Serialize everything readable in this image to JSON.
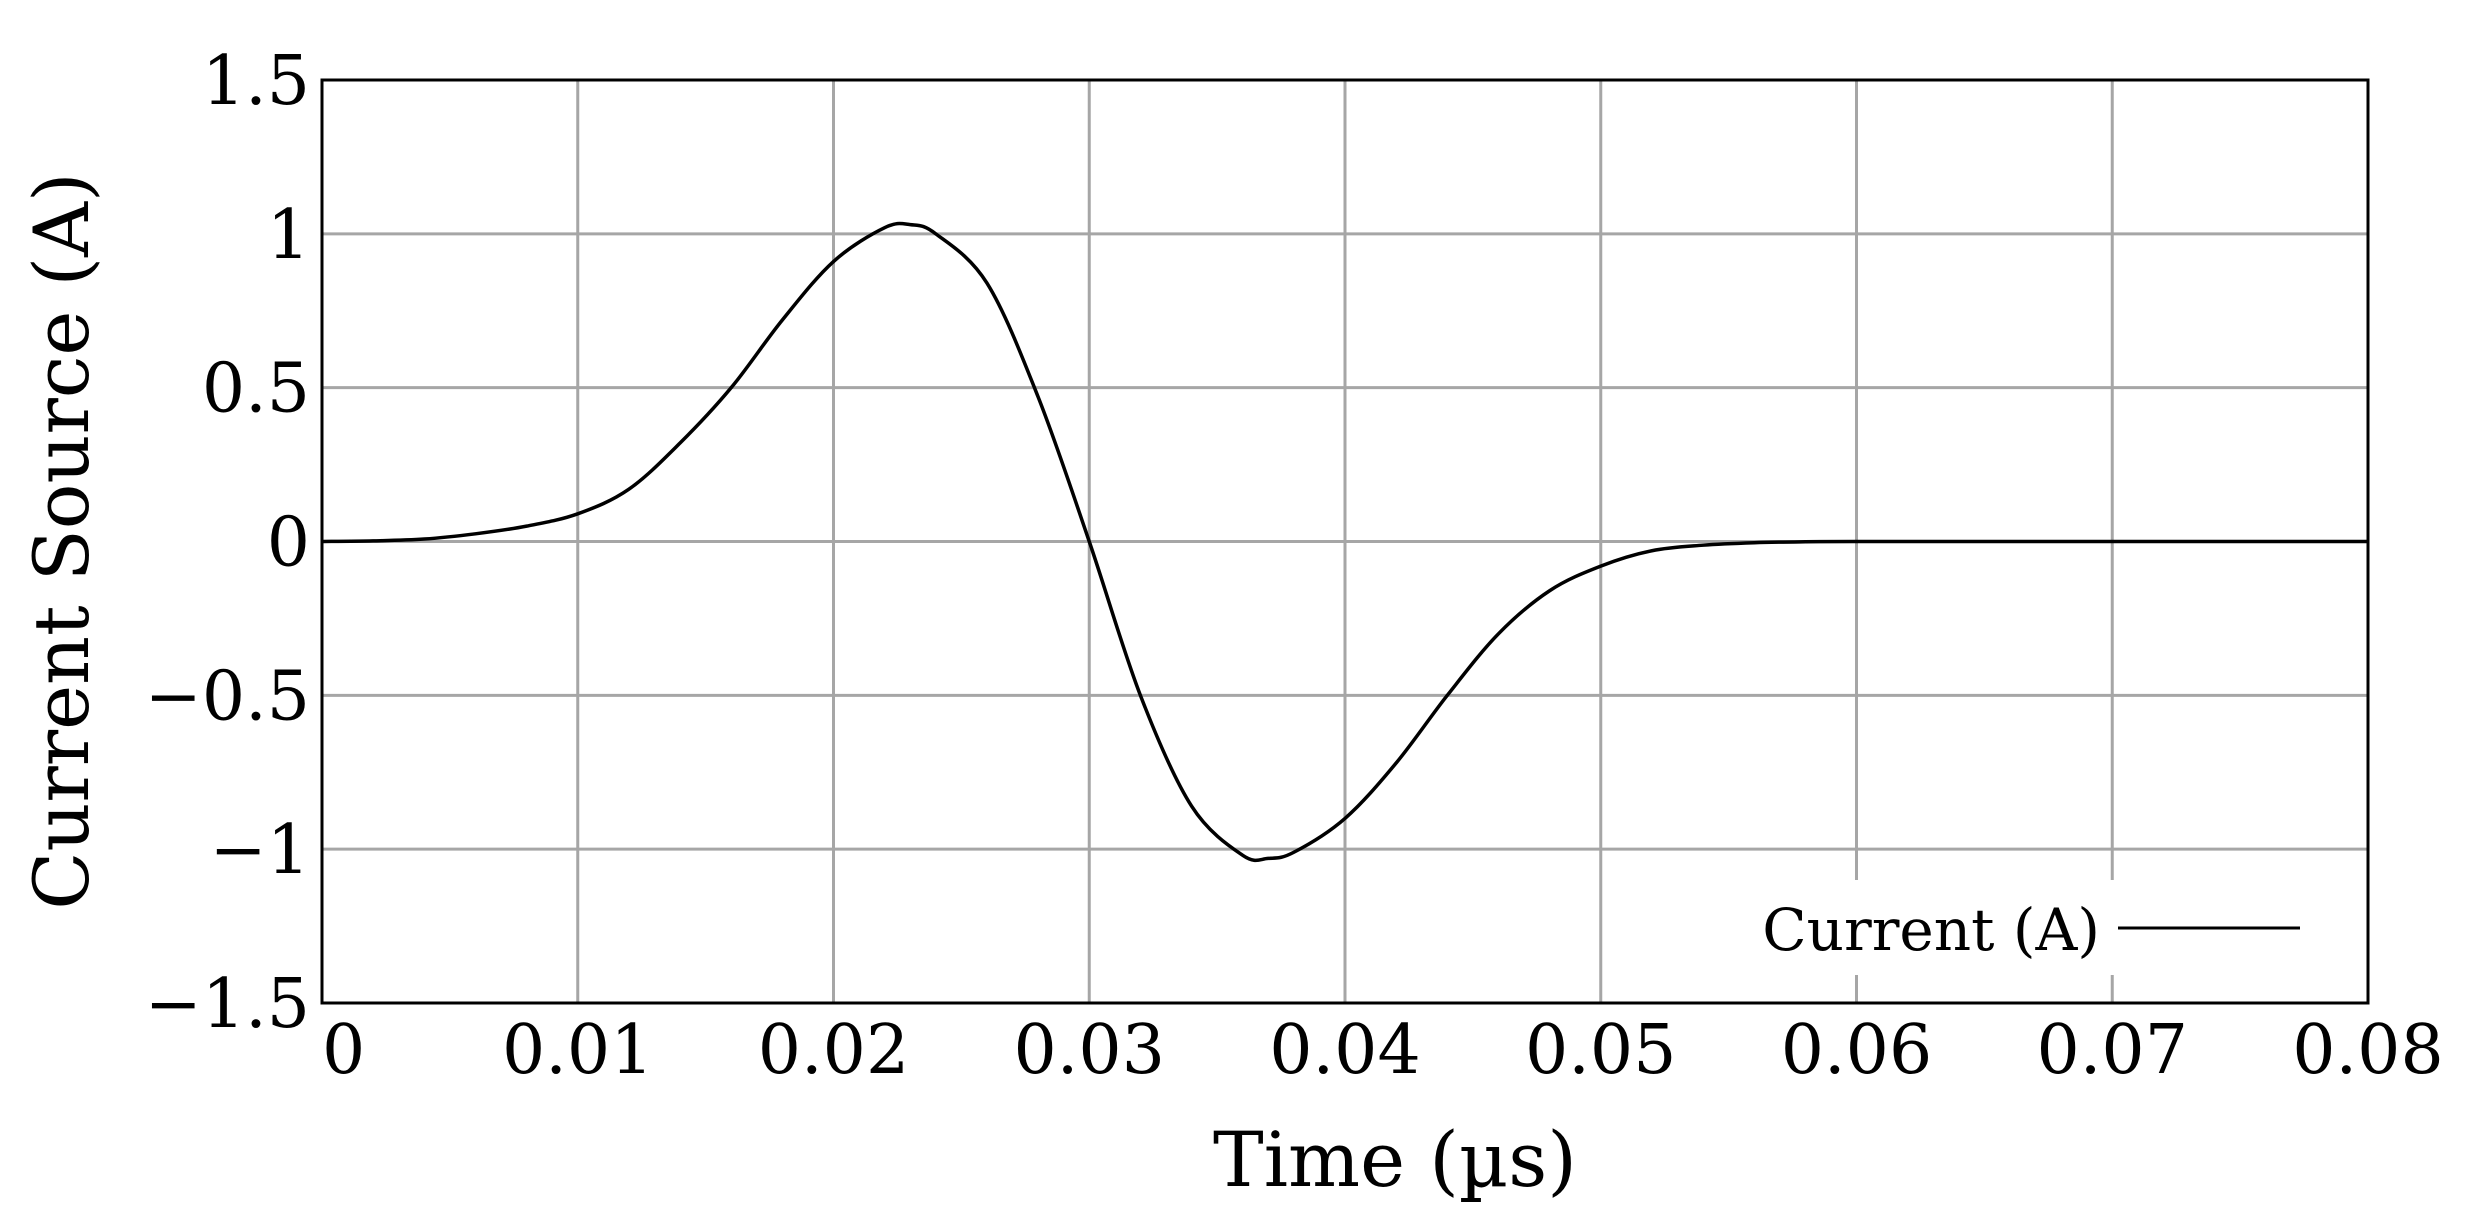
{
  "chart_data": {
    "type": "line",
    "title": "",
    "xlabel": "Time (µs)",
    "ylabel": "Current Source  (A)",
    "xlim": [
      0,
      0.08
    ],
    "ylim": [
      -1.5,
      1.5
    ],
    "grid": true,
    "legend_position": "bottom-right",
    "x_ticks": [
      0,
      0.01,
      0.02,
      0.03,
      0.04,
      0.05,
      0.06,
      0.07,
      0.08
    ],
    "x_tick_labels": [
      "0",
      "0.01",
      "0.02",
      "0.03",
      "0.04",
      "0.05",
      "0.06",
      "0.07",
      "0.08"
    ],
    "y_ticks": [
      1.5,
      1,
      0.5,
      0,
      -0.5,
      -1,
      -1.5
    ],
    "y_tick_labels": [
      "1.5",
      "1",
      "0.5",
      "0",
      "−0.5",
      "−1",
      "−1.5"
    ],
    "colors": {
      "line": "#000000",
      "grid": "#a6a6a6",
      "frame": "#000000"
    },
    "series": [
      {
        "name": "Current (A)",
        "x": [
          0,
          0.002,
          0.004,
          0.006,
          0.008,
          0.01,
          0.012,
          0.014,
          0.016,
          0.018,
          0.02,
          0.022,
          0.023,
          0.024,
          0.026,
          0.028,
          0.03,
          0.032,
          0.034,
          0.036,
          0.037,
          0.038,
          0.04,
          0.042,
          0.044,
          0.046,
          0.048,
          0.05,
          0.052,
          0.054,
          0.056,
          0.058,
          0.06,
          0.065,
          0.07,
          0.075,
          0.08
        ],
        "y": [
          0.0,
          0.002,
          0.008,
          0.025,
          0.05,
          0.09,
          0.17,
          0.32,
          0.5,
          0.72,
          0.91,
          1.02,
          1.03,
          1.0,
          0.84,
          0.47,
          0.0,
          -0.5,
          -0.86,
          -1.02,
          -1.03,
          -1.01,
          -0.9,
          -0.72,
          -0.5,
          -0.3,
          -0.16,
          -0.08,
          -0.03,
          -0.012,
          -0.004,
          -0.001,
          0.0,
          0.0,
          0.0,
          0.0,
          0.0
        ]
      }
    ]
  }
}
